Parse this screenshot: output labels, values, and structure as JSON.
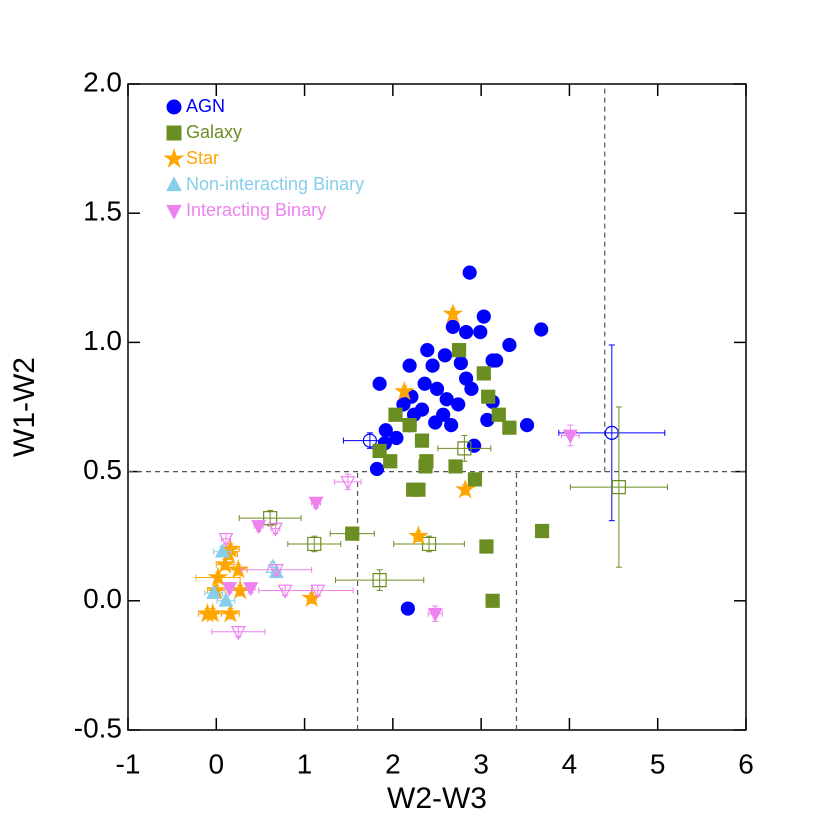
{
  "chart_data": {
    "type": "scatter",
    "xlabel": "W2-W3",
    "ylabel": "W1-W2",
    "xlim": [
      -1,
      6
    ],
    "ylim": [
      -0.5,
      2.0
    ],
    "xticks": [
      -1,
      0,
      1,
      2,
      3,
      4,
      5,
      6
    ],
    "yticks": [
      {
        "value": -0.5,
        "label": "-0.5"
      },
      {
        "value": 0,
        "label": "0.0"
      },
      0.5,
      {
        "value": 1,
        "label": "1.0"
      },
      1.5,
      {
        "value": 2,
        "label": "2.0"
      }
    ],
    "legend": "upper left",
    "reference_lines": [
      {
        "x": [
          -1,
          6
        ],
        "y": [
          0.5,
          0.5
        ]
      },
      {
        "x": [
          4.4,
          4.4
        ],
        "y": [
          0.5,
          2.0
        ]
      },
      {
        "x": [
          1.6,
          1.6
        ],
        "y": [
          -0.5,
          0.5
        ]
      },
      {
        "x": [
          3.4,
          3.4
        ],
        "y": [
          -0.5,
          0.5
        ]
      }
    ],
    "series": [
      {
        "name": "AGN",
        "color": "#0000ff",
        "marker": "circle",
        "x": [
          2.87,
          3.68,
          2.68,
          3.03,
          2.83,
          2.99,
          3.32,
          2.39,
          2.59,
          2.19,
          2.45,
          2.77,
          3.13,
          3.17,
          1.85,
          2.36,
          2.5,
          2.83,
          2.89,
          2.21,
          2.61,
          2.12,
          3.13,
          2.24,
          2.33,
          2.57,
          2.74,
          1.92,
          2.04,
          2.19,
          2.48,
          2.66,
          3.07,
          3.52,
          2.92,
          1.91,
          1.82,
          2.17,
          1.74,
          4.48
        ],
        "values": [
          1.27,
          1.05,
          1.06,
          1.1,
          1.04,
          1.04,
          0.99,
          0.97,
          0.95,
          0.91,
          0.91,
          0.92,
          0.93,
          0.93,
          0.84,
          0.84,
          0.82,
          0.86,
          0.82,
          0.79,
          0.78,
          0.76,
          0.77,
          0.72,
          0.74,
          0.72,
          0.76,
          0.66,
          0.63,
          0.68,
          0.69,
          0.68,
          0.7,
          0.68,
          0.6,
          0.61,
          0.51,
          -0.03,
          0.62,
          0.65
        ],
        "xerr": [
          0.03,
          0.03,
          0.03,
          0.03,
          0.03,
          0.03,
          0.03,
          0.03,
          0.03,
          0.03,
          0.03,
          0.03,
          0.03,
          0.03,
          0.03,
          0.03,
          0.03,
          0.03,
          0.03,
          0.03,
          0.03,
          0.03,
          0.03,
          0.03,
          0.03,
          0.03,
          0.03,
          0.03,
          0.03,
          0.03,
          0.03,
          0.03,
          0.03,
          0.03,
          0.03,
          0.03,
          0.03,
          0.03,
          0.3,
          0.6
        ],
        "yerr": [
          0.02,
          0.02,
          0.02,
          0.02,
          0.02,
          0.02,
          0.02,
          0.02,
          0.02,
          0.02,
          0.02,
          0.02,
          0.02,
          0.02,
          0.02,
          0.02,
          0.02,
          0.02,
          0.02,
          0.02,
          0.02,
          0.02,
          0.02,
          0.02,
          0.02,
          0.02,
          0.02,
          0.02,
          0.02,
          0.02,
          0.02,
          0.02,
          0.02,
          0.02,
          0.02,
          0.02,
          0.02,
          0.02,
          0.03,
          0.34
        ],
        "filled": [
          true,
          true,
          true,
          true,
          true,
          true,
          true,
          true,
          true,
          true,
          true,
          true,
          true,
          true,
          true,
          true,
          true,
          true,
          true,
          true,
          true,
          true,
          true,
          true,
          true,
          true,
          true,
          true,
          true,
          true,
          true,
          true,
          true,
          true,
          true,
          true,
          true,
          true,
          false,
          false
        ]
      },
      {
        "name": "Galaxy",
        "color": "#6b8e23",
        "marker": "square",
        "x": [
          2.75,
          3.03,
          3.08,
          2.03,
          2.19,
          3.2,
          3.32,
          2.33,
          1.97,
          1.85,
          2.38,
          2.37,
          2.71,
          2.93,
          2.23,
          2.29,
          1.54,
          3.69,
          3.06,
          3.13,
          2.81,
          0.61,
          1.11,
          2.41,
          1.85,
          4.56
        ],
        "values": [
          0.97,
          0.88,
          0.79,
          0.72,
          0.68,
          0.72,
          0.67,
          0.62,
          0.54,
          0.58,
          0.54,
          0.52,
          0.52,
          0.47,
          0.43,
          0.43,
          0.26,
          0.27,
          0.21,
          0.0,
          0.59,
          0.32,
          0.22,
          0.22,
          0.08,
          0.44
        ],
        "xerr": [
          0.04,
          0.04,
          0.04,
          0.04,
          0.04,
          0.04,
          0.04,
          0.04,
          0.04,
          0.04,
          0.04,
          0.04,
          0.04,
          0.04,
          0.04,
          0.04,
          0.25,
          0.04,
          0.04,
          0.04,
          0.3,
          0.35,
          0.3,
          0.4,
          0.5,
          0.55
        ],
        "yerr": [
          0.02,
          0.02,
          0.02,
          0.02,
          0.02,
          0.02,
          0.02,
          0.02,
          0.02,
          0.02,
          0.02,
          0.02,
          0.02,
          0.02,
          0.02,
          0.02,
          0.02,
          0.02,
          0.02,
          0.02,
          0.05,
          0.03,
          0.03,
          0.03,
          0.04,
          0.31
        ],
        "filled": [
          true,
          true,
          true,
          true,
          true,
          true,
          true,
          true,
          true,
          true,
          true,
          true,
          true,
          true,
          true,
          true,
          true,
          true,
          true,
          true,
          false,
          false,
          false,
          false,
          false,
          false
        ]
      },
      {
        "name": "Star",
        "color": "#ffa500",
        "marker": "star",
        "x": [
          2.68,
          2.13,
          2.82,
          2.29,
          1.08,
          0.0,
          0.16,
          0.1,
          0.25,
          -0.04,
          0.16,
          0.27,
          0.02,
          0.14,
          -0.1
        ],
        "values": [
          1.11,
          0.81,
          0.43,
          0.25,
          0.01,
          0.04,
          0.2,
          0.14,
          0.12,
          -0.05,
          -0.05,
          0.04,
          0.09,
          0.18,
          -0.05
        ],
        "xerr": [
          0.04,
          0.04,
          0.04,
          0.05,
          0.05,
          0.1,
          0.1,
          0.1,
          0.1,
          0.1,
          0.1,
          0.1,
          0.25,
          0.1,
          0.1
        ],
        "yerr": [
          0.02,
          0.02,
          0.02,
          0.02,
          0.02,
          0.02,
          0.02,
          0.02,
          0.02,
          0.02,
          0.02,
          0.02,
          0.02,
          0.02,
          0.02
        ],
        "filled": [
          true,
          true,
          true,
          true,
          true,
          true,
          true,
          true,
          true,
          true,
          true,
          true,
          true,
          true,
          true
        ]
      },
      {
        "name": "Non-interacting Binary",
        "color": "#87ceeb",
        "marker": "triangle-up",
        "x": [
          0.07,
          -0.03,
          0.11,
          0.68,
          0.64
        ],
        "values": [
          0.19,
          0.03,
          0.0,
          0.11,
          0.13
        ],
        "xerr": [
          0.1,
          0.1,
          0.1,
          0.05,
          0.05
        ],
        "yerr": [
          0.02,
          0.02,
          0.02,
          0.02,
          0.02
        ],
        "filled": [
          true,
          true,
          true,
          true,
          false
        ]
      },
      {
        "name": "Interacting Binary",
        "color": "#ee82ee",
        "marker": "triangle-down",
        "x": [
          1.13,
          0.48,
          0.15,
          0.39,
          2.48,
          4.01,
          1.49,
          0.67,
          0.11,
          0.68,
          0.78,
          1.15,
          0.25
        ],
        "values": [
          0.38,
          0.29,
          0.05,
          0.05,
          -0.05,
          0.64,
          0.46,
          0.28,
          0.24,
          0.12,
          0.04,
          0.04,
          -0.12
        ],
        "xerr": [
          0.05,
          0.05,
          0.05,
          0.05,
          0.08,
          0.1,
          0.15,
          0.05,
          0.05,
          0.4,
          0.3,
          0.4,
          0.3
        ],
        "yerr": [
          0.02,
          0.02,
          0.02,
          0.02,
          0.03,
          0.04,
          0.03,
          0.02,
          0.02,
          0.02,
          0.02,
          0.02,
          0.02
        ],
        "filled": [
          true,
          true,
          true,
          true,
          true,
          true,
          false,
          false,
          false,
          false,
          false,
          false,
          false
        ]
      }
    ]
  }
}
